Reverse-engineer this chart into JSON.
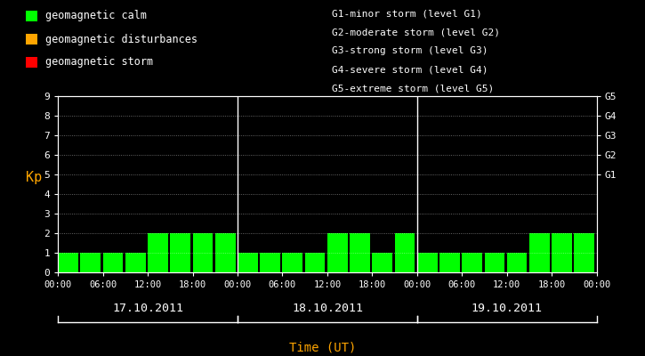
{
  "background_color": "#000000",
  "plot_bg_color": "#000000",
  "bar_color_calm": "#00ff00",
  "bar_color_disturbance": "#ffa500",
  "bar_color_storm": "#ff0000",
  "text_color": "#ffffff",
  "xlabel_color": "#ffa500",
  "ylabel_color": "#ffa500",
  "grid_color": "#ffffff",
  "separator_color": "#ffffff",
  "title_legend_left": [
    [
      "#00ff00",
      "geomagnetic calm"
    ],
    [
      "#ffa500",
      "geomagnetic disturbances"
    ],
    [
      "#ff0000",
      "geomagnetic storm"
    ]
  ],
  "right_legend": [
    "G1-minor storm (level G1)",
    "G2-moderate storm (level G2)",
    "G3-strong storm (level G3)",
    "G4-severe storm (level G4)",
    "G5-extreme storm (level G5)"
  ],
  "right_ytick_labels": [
    "G5",
    "G4",
    "G3",
    "G2",
    "G1"
  ],
  "right_ytick_positions": [
    9,
    8,
    7,
    6,
    5
  ],
  "ylabel": "Kp",
  "xlabel": "Time (UT)",
  "days": [
    "17.10.2011",
    "18.10.2011",
    "19.10.2011"
  ],
  "ylim": [
    0,
    9
  ],
  "yticks": [
    0,
    1,
    2,
    3,
    4,
    5,
    6,
    7,
    8,
    9
  ],
  "kp_day1": [
    1,
    1,
    1,
    1,
    2,
    2,
    2,
    2
  ],
  "kp_day2": [
    1,
    1,
    1,
    1,
    2,
    2,
    1,
    2
  ],
  "kp_day3": [
    1,
    1,
    1,
    1,
    1,
    2,
    2,
    2
  ],
  "bar_interval": 3,
  "total_hours_per_day": 24
}
